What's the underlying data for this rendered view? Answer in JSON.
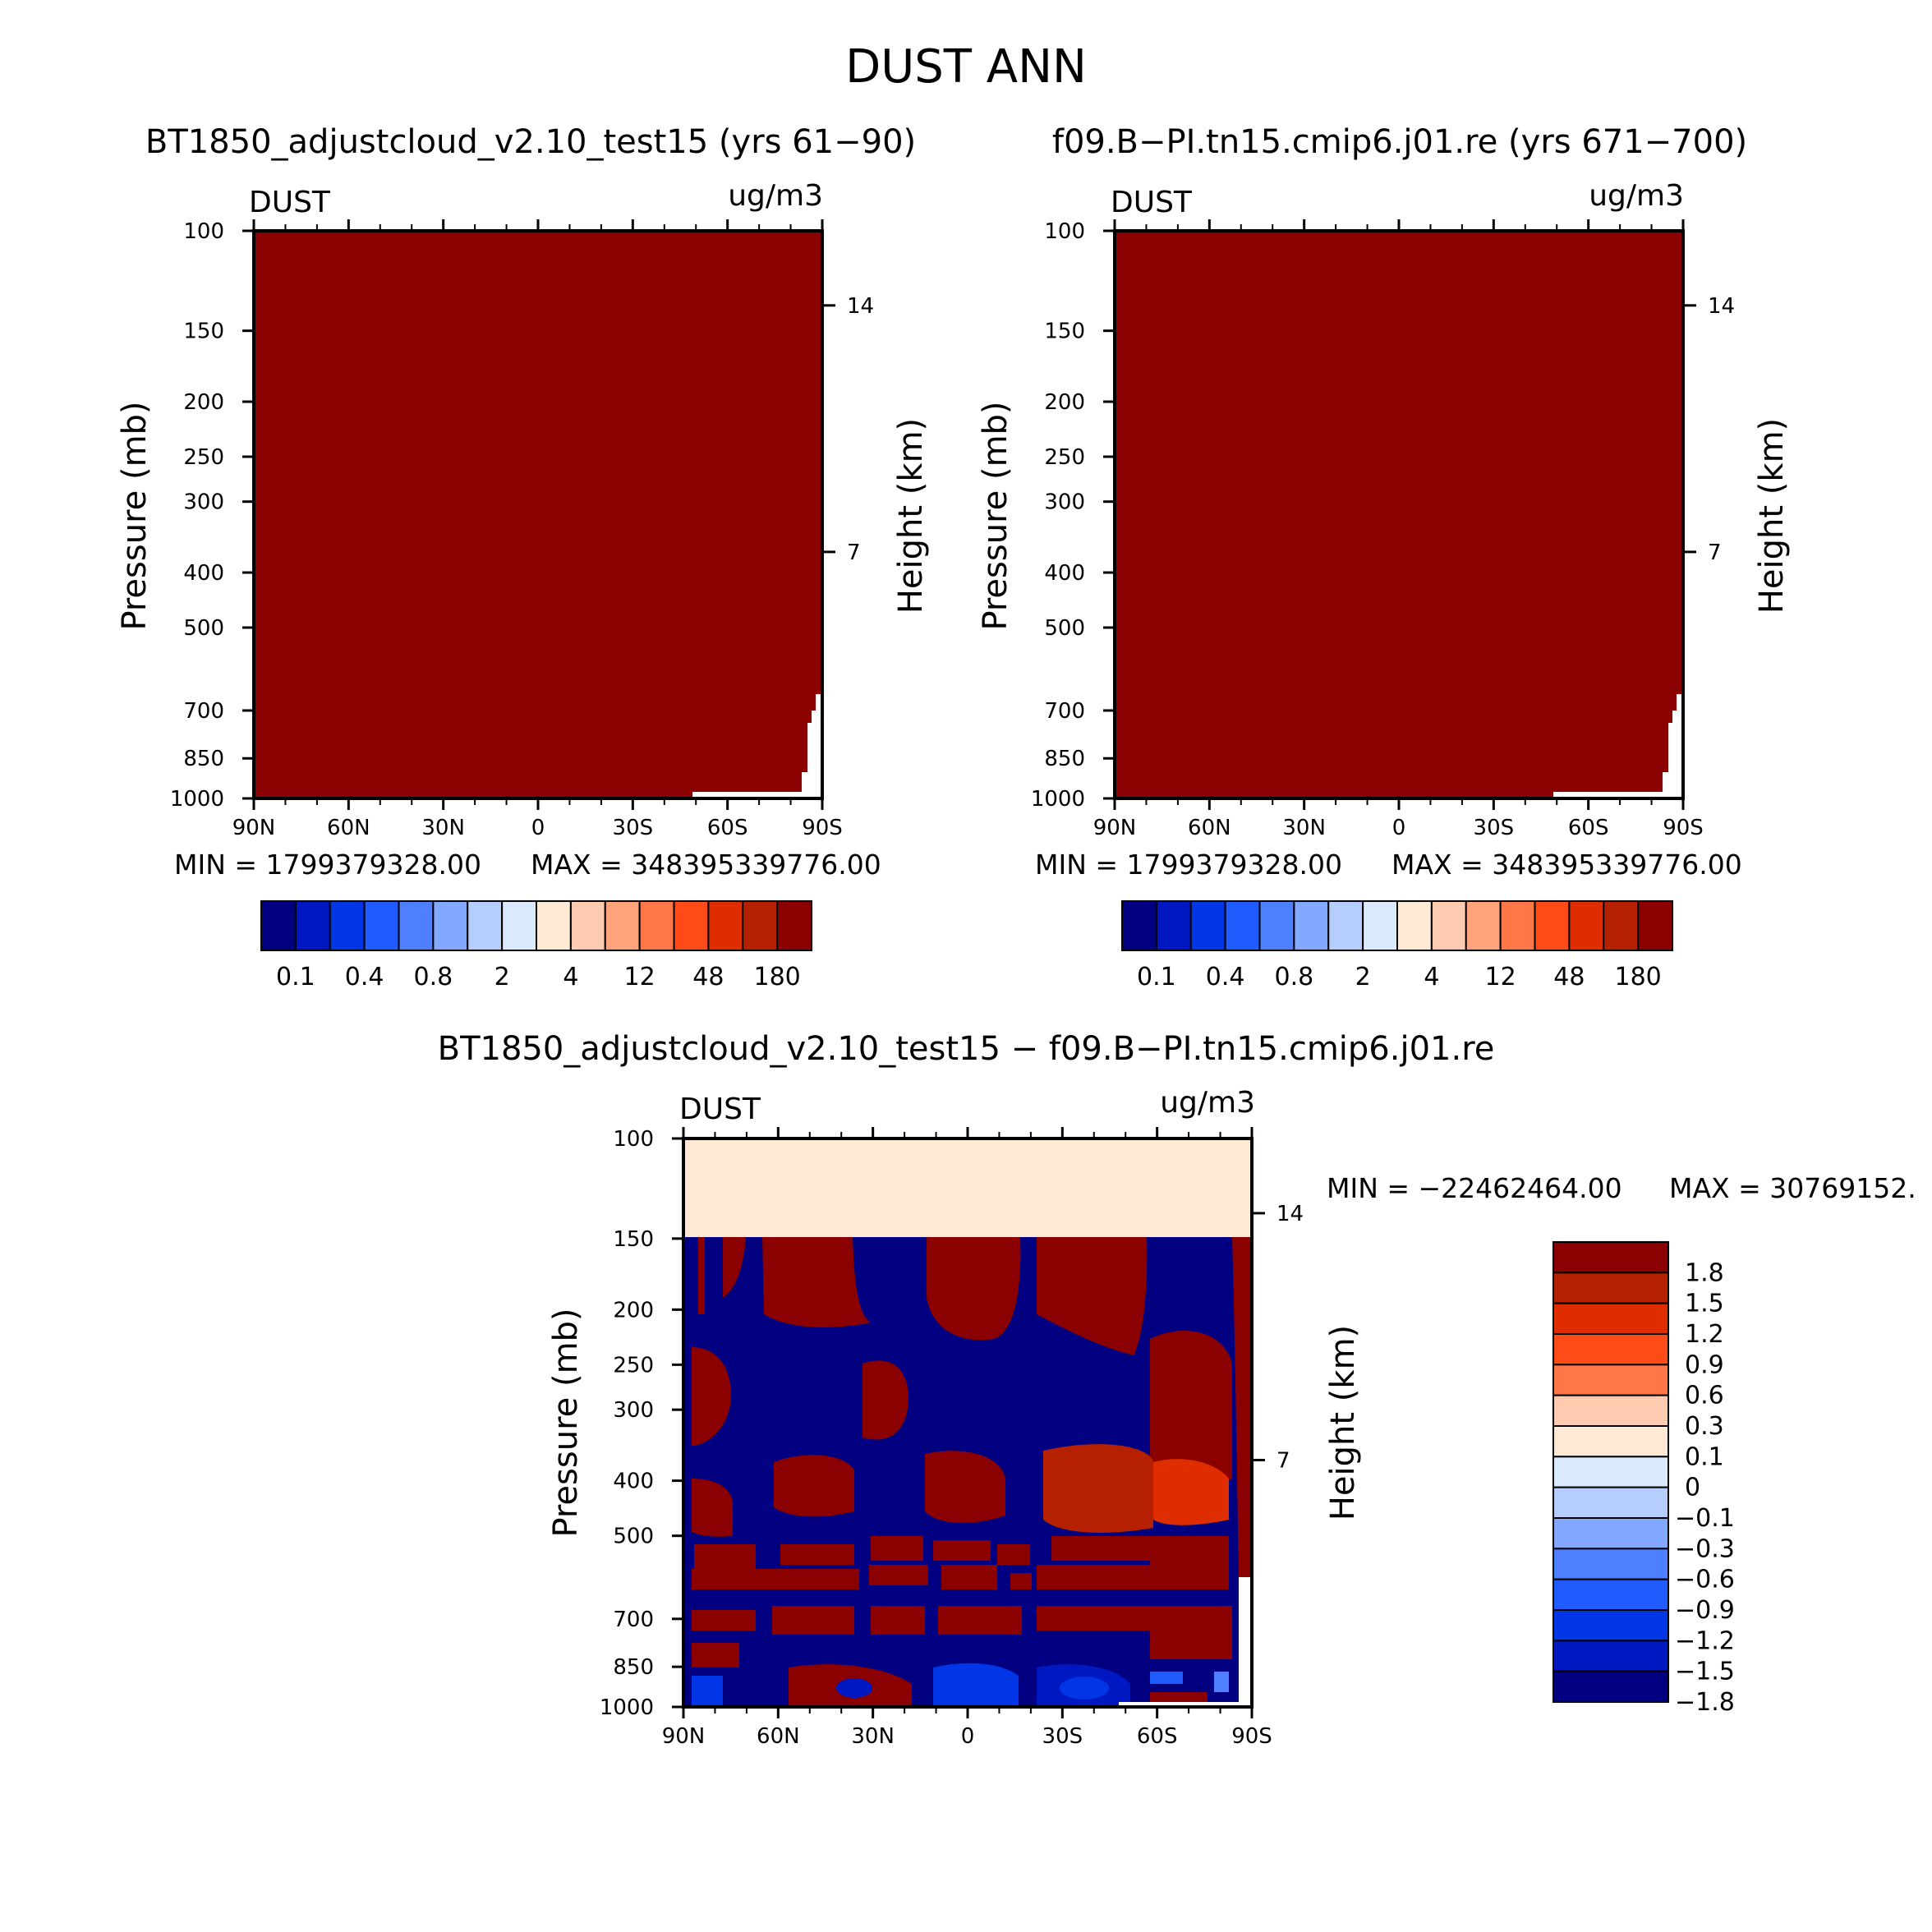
{
  "title": "DUST ANN",
  "colors": {
    "seq": [
      "#000080",
      "#0018c2",
      "#0036e6",
      "#1f5bff",
      "#4d7fff",
      "#83a8ff",
      "#b5cdff",
      "#dceaff",
      "#ffead6",
      "#ffcbb0",
      "#ffa37c",
      "#ff7747",
      "#ff4b17",
      "#e02d00",
      "#b52100",
      "#8b0000"
    ],
    "diff": [
      "#000080",
      "#0018c2",
      "#0036e6",
      "#1f5bff",
      "#4d7fff",
      "#83a8ff",
      "#b5cdff",
      "#dceaff",
      "#ffead6",
      "#ffcbb0",
      "#ff7747",
      "#ff4b17",
      "#e02d00",
      "#b52100",
      "#8b0000"
    ]
  },
  "chart_data": [
    {
      "type": "heatmap",
      "title": "BT1850_adjustcloud_v2.10_test15 (yrs 61−90)",
      "variable_label": "DUST",
      "units_label": "ug/m3",
      "ylabel": "Pressure (mb)",
      "y2label": "Height (km)",
      "yticks": [
        "100",
        "150",
        "200",
        "250",
        "300",
        "400",
        "500",
        "700",
        "850",
        "1000"
      ],
      "y2ticks": [
        "14",
        "7"
      ],
      "xticks": [
        "90N",
        "60N",
        "30N",
        "0",
        "30S",
        "60S",
        "90S"
      ],
      "min_label": "MIN = 1799379328.00",
      "max_label": "MAX = 348395339776.00",
      "colorbar_labels": [
        "0.1",
        "0.4",
        "0.8",
        "2",
        "4",
        "12",
        "48",
        "180"
      ]
    },
    {
      "type": "heatmap",
      "title": "f09.B−PI.tn15.cmip6.j01.re (yrs 671−700)",
      "variable_label": "DUST",
      "units_label": "ug/m3",
      "ylabel": "Pressure (mb)",
      "y2label": "Height (km)",
      "yticks": [
        "100",
        "150",
        "200",
        "250",
        "300",
        "400",
        "500",
        "700",
        "850",
        "1000"
      ],
      "y2ticks": [
        "14",
        "7"
      ],
      "xticks": [
        "90N",
        "60N",
        "30N",
        "0",
        "30S",
        "60S",
        "90S"
      ],
      "min_label": "MIN = 1799379328.00",
      "max_label": "MAX = 348395339776.00",
      "colorbar_labels": [
        "0.1",
        "0.4",
        "0.8",
        "2",
        "4",
        "12",
        "48",
        "180"
      ]
    },
    {
      "type": "heatmap",
      "title": "BT1850_adjustcloud_v2.10_test15 − f09.B−PI.tn15.cmip6.j01.re",
      "variable_label": "DUST",
      "units_label": "ug/m3",
      "ylabel": "Pressure (mb)",
      "y2label": "Height (km)",
      "yticks": [
        "100",
        "150",
        "200",
        "250",
        "300",
        "400",
        "500",
        "700",
        "850",
        "1000"
      ],
      "y2ticks": [
        "14",
        "7"
      ],
      "xticks": [
        "90N",
        "60N",
        "30N",
        "0",
        "30S",
        "60S",
        "90S"
      ],
      "min_label": "MIN = −22462464.00",
      "max_label": "MAX = 30769152.",
      "colorbar_labels": [
        "1.8",
        "1.5",
        "1.2",
        "0.9",
        "0.6",
        "0.3",
        "0.1",
        "0",
        "−0.1",
        "−0.3",
        "−0.6",
        "−0.9",
        "−1.2",
        "−1.5",
        "−1.8"
      ]
    }
  ]
}
